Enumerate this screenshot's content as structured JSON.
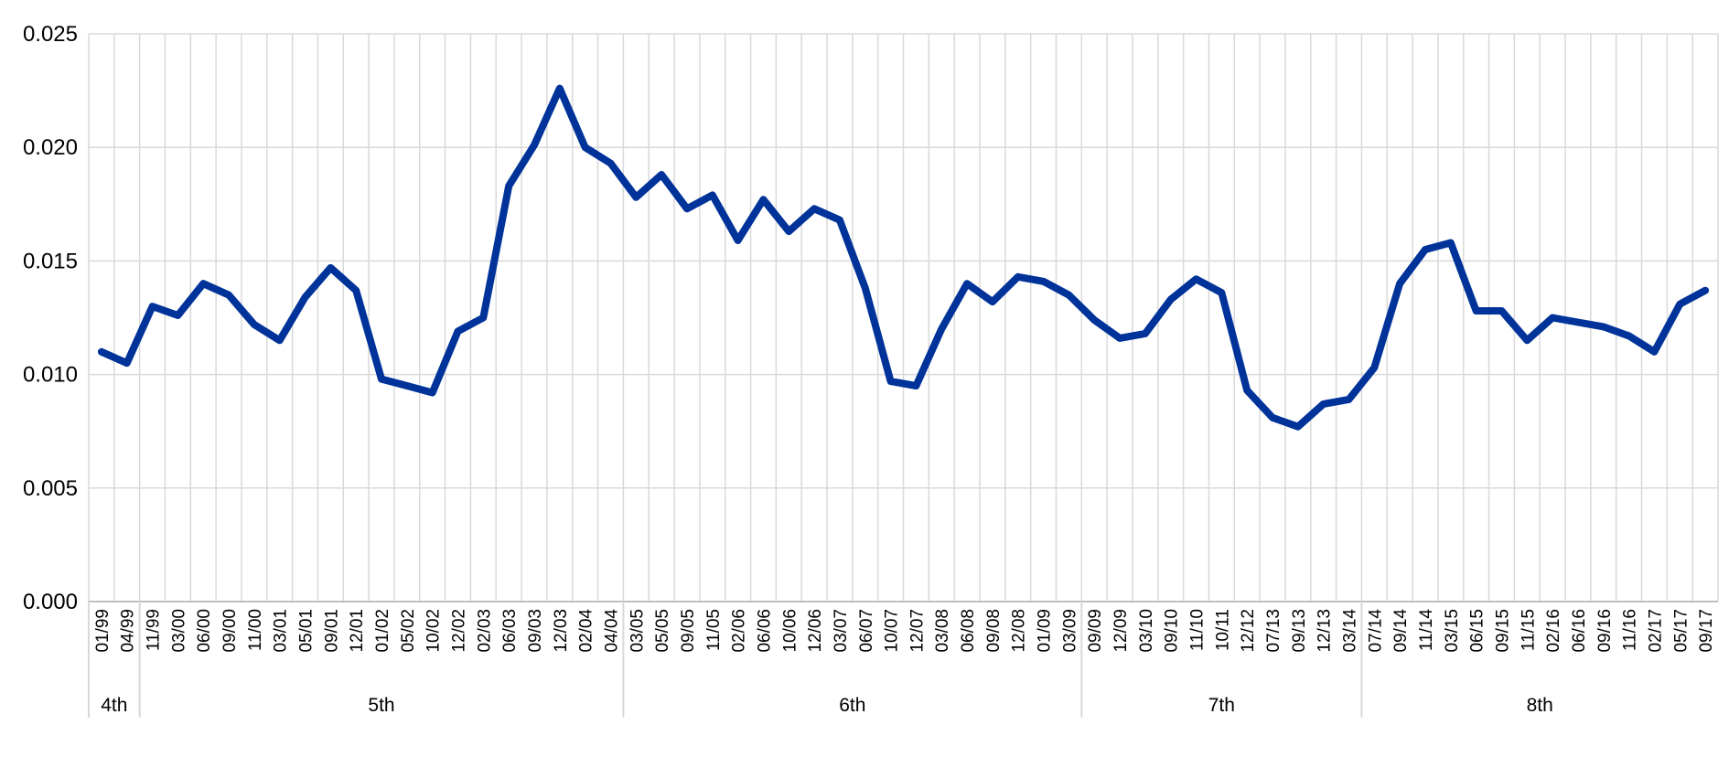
{
  "chart_data": {
    "type": "line",
    "title": "",
    "xlabel": "",
    "ylabel": "",
    "ylim": [
      0,
      0.025
    ],
    "yticks": [
      "0.000",
      "0.005",
      "0.010",
      "0.015",
      "0.020",
      "0.025"
    ],
    "grid": true,
    "legend": "none",
    "categories": [
      "01/99",
      "04/99",
      "11/99",
      "03/00",
      "06/00",
      "09/00",
      "11/00",
      "03/01",
      "05/01",
      "09/01",
      "12/01",
      "01/02",
      "05/02",
      "10/02",
      "12/02",
      "02/03",
      "06/03",
      "09/03",
      "12/03",
      "02/04",
      "04/04",
      "03/05",
      "05/05",
      "09/05",
      "11/05",
      "02/06",
      "06/06",
      "10/06",
      "12/06",
      "03/07",
      "06/07",
      "10/07",
      "12/07",
      "03/08",
      "06/08",
      "09/08",
      "12/08",
      "01/09",
      "03/09",
      "09/09",
      "12/09",
      "03/10",
      "09/10",
      "11/10",
      "10/11",
      "12/12",
      "07/13",
      "09/13",
      "12/13",
      "03/14",
      "07/14",
      "09/14",
      "11/14",
      "03/15",
      "06/15",
      "09/15",
      "11/15",
      "02/16",
      "06/16",
      "09/16",
      "11/16",
      "02/17",
      "05/17",
      "09/17"
    ],
    "series": [
      {
        "color": "#003399",
        "values": [
          0.011,
          0.0105,
          0.013,
          0.0126,
          0.014,
          0.0135,
          0.0122,
          0.0115,
          0.0134,
          0.0147,
          0.0137,
          0.0098,
          0.0095,
          0.0092,
          0.0119,
          0.0125,
          0.0183,
          0.0201,
          0.0226,
          0.02,
          0.0193,
          0.0178,
          0.0188,
          0.0173,
          0.0179,
          0.0159,
          0.0177,
          0.0163,
          0.0173,
          0.0168,
          0.0138,
          0.0097,
          0.0095,
          0.012,
          0.014,
          0.0132,
          0.0143,
          0.0141,
          0.0135,
          0.0124,
          0.0116,
          0.0118,
          0.0133,
          0.0142,
          0.0136,
          0.0093,
          0.0081,
          0.0077,
          0.0087,
          0.0089,
          0.0103,
          0.014,
          0.0155,
          0.0158,
          0.0128,
          0.0128,
          0.0115,
          0.0125,
          0.0123,
          0.0121,
          0.0117,
          0.011,
          0.0131,
          0.0137
        ]
      }
    ],
    "groups": [
      {
        "label": "4th",
        "start": 0,
        "end": 1
      },
      {
        "label": "5th",
        "start": 2,
        "end": 20
      },
      {
        "label": "6th",
        "start": 21,
        "end": 38
      },
      {
        "label": "7th",
        "start": 39,
        "end": 49
      },
      {
        "label": "8th",
        "start": 50,
        "end": 63
      }
    ]
  }
}
